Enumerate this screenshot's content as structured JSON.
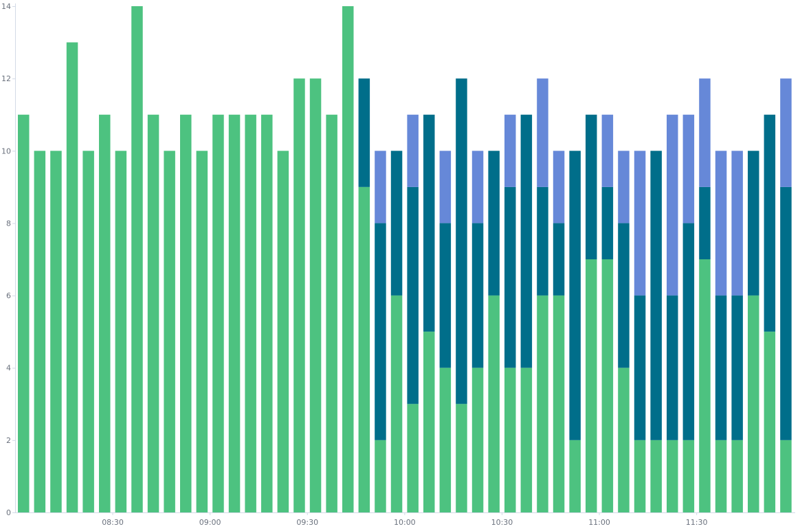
{
  "chart_data": {
    "type": "bar",
    "stacked": true,
    "title": "",
    "xlabel": "",
    "ylabel": "",
    "ylim": [
      0,
      14
    ],
    "yticks": [
      0,
      2,
      4,
      6,
      8,
      10,
      12,
      14
    ],
    "grid": false,
    "legend": "none",
    "interval_minutes": 5,
    "x": [
      "08:05",
      "08:10",
      "08:15",
      "08:20",
      "08:25",
      "08:30",
      "08:35",
      "08:40",
      "08:45",
      "08:50",
      "08:55",
      "09:00",
      "09:05",
      "09:10",
      "09:15",
      "09:20",
      "09:25",
      "09:30",
      "09:35",
      "09:40",
      "09:45",
      "09:50",
      "09:55",
      "10:00",
      "10:05",
      "10:10",
      "10:15",
      "10:20",
      "10:25",
      "10:30",
      "10:35",
      "10:40",
      "10:45",
      "10:50",
      "10:55",
      "11:00",
      "11:05",
      "11:10",
      "11:15",
      "11:20",
      "11:25",
      "11:30",
      "11:35",
      "11:40",
      "11:45",
      "11:50",
      "11:55",
      "12:00"
    ],
    "xtick_labels": [
      "08:30",
      "09:00",
      "09:30",
      "10:00",
      "10:30",
      "11:00",
      "11:30"
    ],
    "series": [
      {
        "color": "#4dc280",
        "values": [
          11,
          10,
          10,
          13,
          10,
          11,
          10,
          14,
          11,
          10,
          11,
          10,
          11,
          11,
          11,
          11,
          10,
          12,
          12,
          11,
          14,
          9,
          2,
          6,
          3,
          5,
          4,
          3,
          4,
          6,
          4,
          4,
          6,
          6,
          2,
          7,
          7,
          4,
          2,
          2,
          2,
          2,
          7,
          2,
          2,
          6,
          5,
          2
        ]
      },
      {
        "color": "#006e8a",
        "values": [
          0,
          0,
          0,
          0,
          0,
          0,
          0,
          0,
          0,
          0,
          0,
          0,
          0,
          0,
          0,
          0,
          0,
          0,
          0,
          0,
          0,
          3,
          6,
          4,
          6,
          6,
          4,
          9,
          4,
          4,
          5,
          7,
          3,
          2,
          8,
          4,
          2,
          4,
          4,
          8,
          4,
          6,
          2,
          4,
          4,
          4,
          6,
          7
        ]
      },
      {
        "color": "#6688d8",
        "values": [
          0,
          0,
          0,
          0,
          0,
          0,
          0,
          0,
          0,
          0,
          0,
          0,
          0,
          0,
          0,
          0,
          0,
          0,
          0,
          0,
          0,
          0,
          2,
          0,
          2,
          0,
          2,
          0,
          2,
          0,
          2,
          0,
          3,
          2,
          0,
          0,
          2,
          2,
          4,
          0,
          5,
          3,
          3,
          4,
          4,
          0,
          0,
          3
        ]
      }
    ]
  }
}
